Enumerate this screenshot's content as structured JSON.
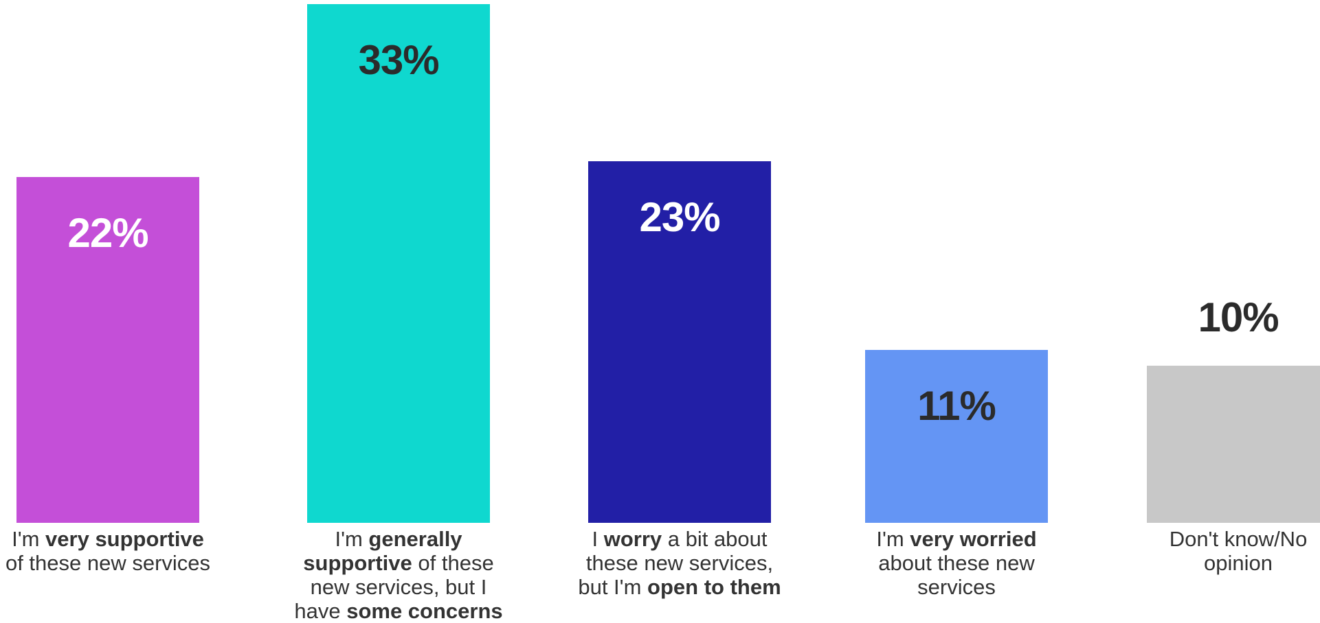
{
  "chart_data": {
    "type": "bar",
    "ylim": [
      0,
      35
    ],
    "grid": false,
    "legend": "none",
    "series": [
      {
        "values": [
          22,
          33,
          23,
          11,
          10
        ],
        "value_labels": [
          "22%",
          "33%",
          "23%",
          "11%",
          "10%"
        ],
        "colors": [
          "#C44FD8",
          "#0FD8CF",
          "#221FA6",
          "#6495F4",
          "#C8C8C8"
        ],
        "label_colors": [
          "#FFFFFF",
          "#2B2B2B",
          "#FFFFFF",
          "#2B2B2B",
          "#2B2B2B"
        ]
      }
    ],
    "categories": [
      [
        {
          "text": "I'm ",
          "bold": false
        },
        {
          "text": "very supportive",
          "bold": true
        },
        {
          "text": " of these new services",
          "bold": false
        }
      ],
      [
        {
          "text": "I'm ",
          "bold": false
        },
        {
          "text": "generally supportive",
          "bold": true
        },
        {
          "text": " of these new services, but I have ",
          "bold": false
        },
        {
          "text": "some concerns",
          "bold": true
        }
      ],
      [
        {
          "text": "I ",
          "bold": false
        },
        {
          "text": "worry",
          "bold": true
        },
        {
          "text": " a bit about these new services, but I'm ",
          "bold": false
        },
        {
          "text": "open to them",
          "bold": true
        }
      ],
      [
        {
          "text": "I'm ",
          "bold": false
        },
        {
          "text": "very worried",
          "bold": true
        },
        {
          "text": " about these new services",
          "bold": false
        }
      ],
      [
        {
          "text": "Don't know/No opinion",
          "bold": false
        }
      ]
    ]
  }
}
